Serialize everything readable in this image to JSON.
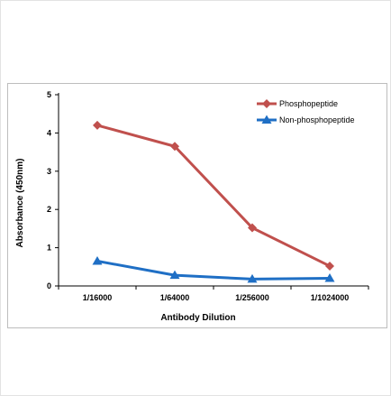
{
  "chart_data": {
    "type": "line",
    "xlabel": "Antibody Dilution",
    "ylabel": "Absorbance (450nm)",
    "categories": [
      "1/16000",
      "1/64000",
      "1/256000",
      "1/1024000"
    ],
    "ylim": [
      0,
      5
    ],
    "yticks": [
      0,
      1,
      2,
      3,
      4,
      5
    ],
    "grid": false,
    "legend_position": "top-right",
    "series": [
      {
        "name": "Phosphopeptide",
        "color": "#c0504d",
        "marker": "diamond",
        "values": [
          4.2,
          3.65,
          1.52,
          0.52
        ]
      },
      {
        "name": "Non-phosphopeptide",
        "color": "#1f6fc5",
        "marker": "triangle",
        "values": [
          0.65,
          0.28,
          0.18,
          0.2
        ]
      }
    ]
  }
}
